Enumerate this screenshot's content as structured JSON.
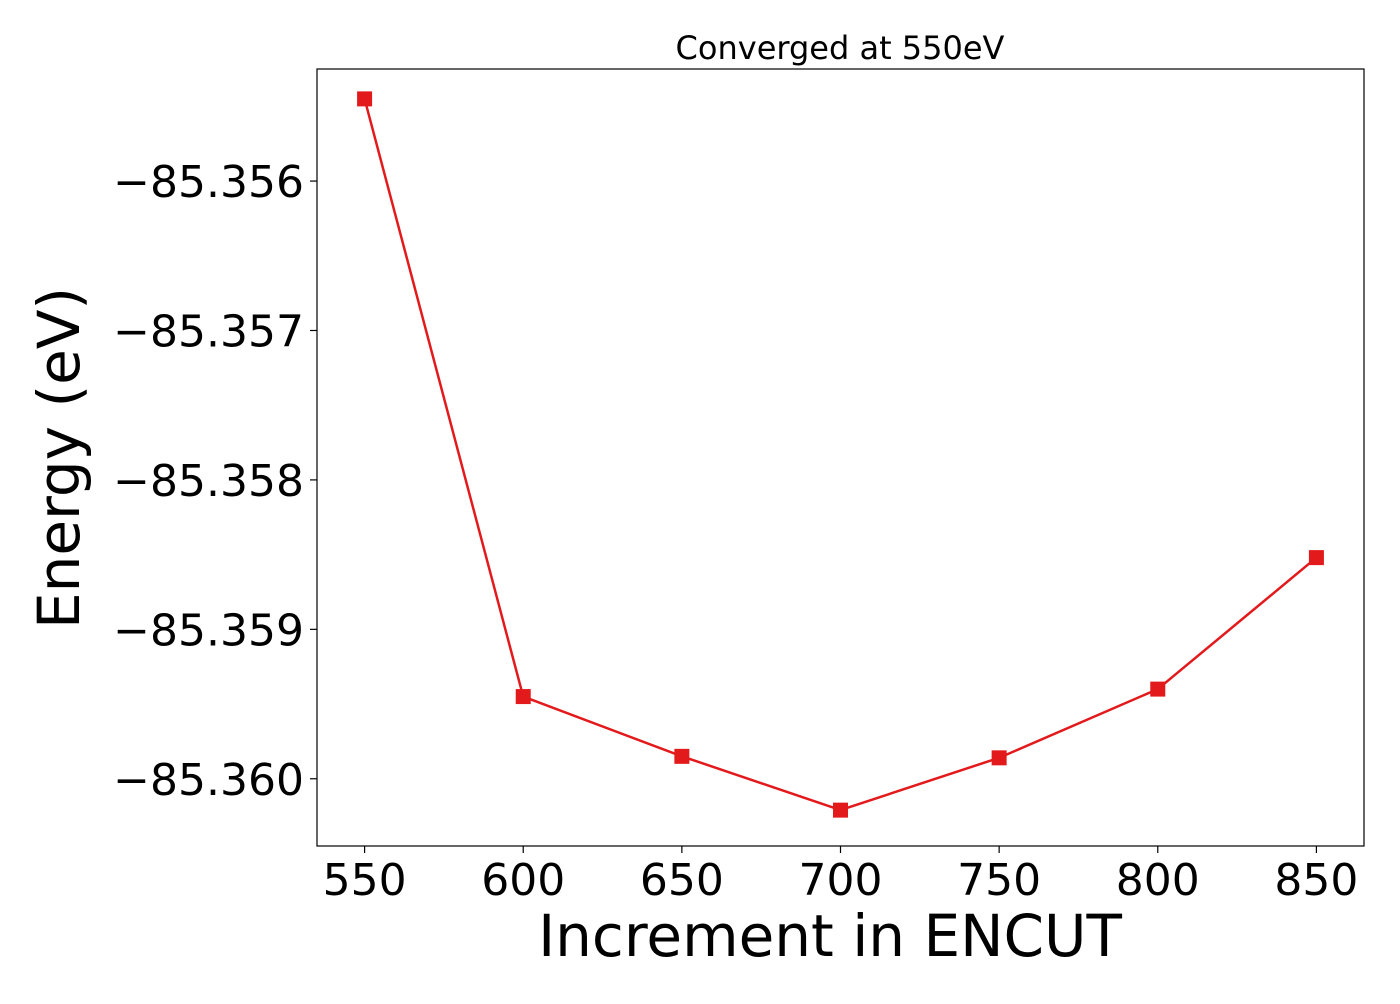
{
  "chart_data": {
    "type": "line",
    "title": "Converged at 550eV",
    "xlabel": "Increment in ENCUT",
    "ylabel": "Energy (eV)",
    "x": [
      550,
      600,
      650,
      700,
      750,
      800,
      850
    ],
    "xlim": [
      535,
      865
    ],
    "ylim": [
      -85.36045,
      -85.35525
    ],
    "x_ticks": [
      "550",
      "600",
      "650",
      "700",
      "750",
      "800",
      "850"
    ],
    "y_ticks": [
      {
        "value": -85.356,
        "label": "−85.356"
      },
      {
        "value": -85.357,
        "label": "−85.357"
      },
      {
        "value": -85.358,
        "label": "−85.358"
      },
      {
        "value": -85.359,
        "label": "−85.359"
      },
      {
        "value": -85.36,
        "label": "−85.360"
      }
    ],
    "series": [
      {
        "values": [
          -85.35545,
          -85.35945,
          -85.35985,
          -85.36021,
          -85.35986,
          -85.3594,
          -85.35852
        ],
        "color": "#e31a1c",
        "marker": "square"
      }
    ],
    "grid": false,
    "legend": "none"
  }
}
